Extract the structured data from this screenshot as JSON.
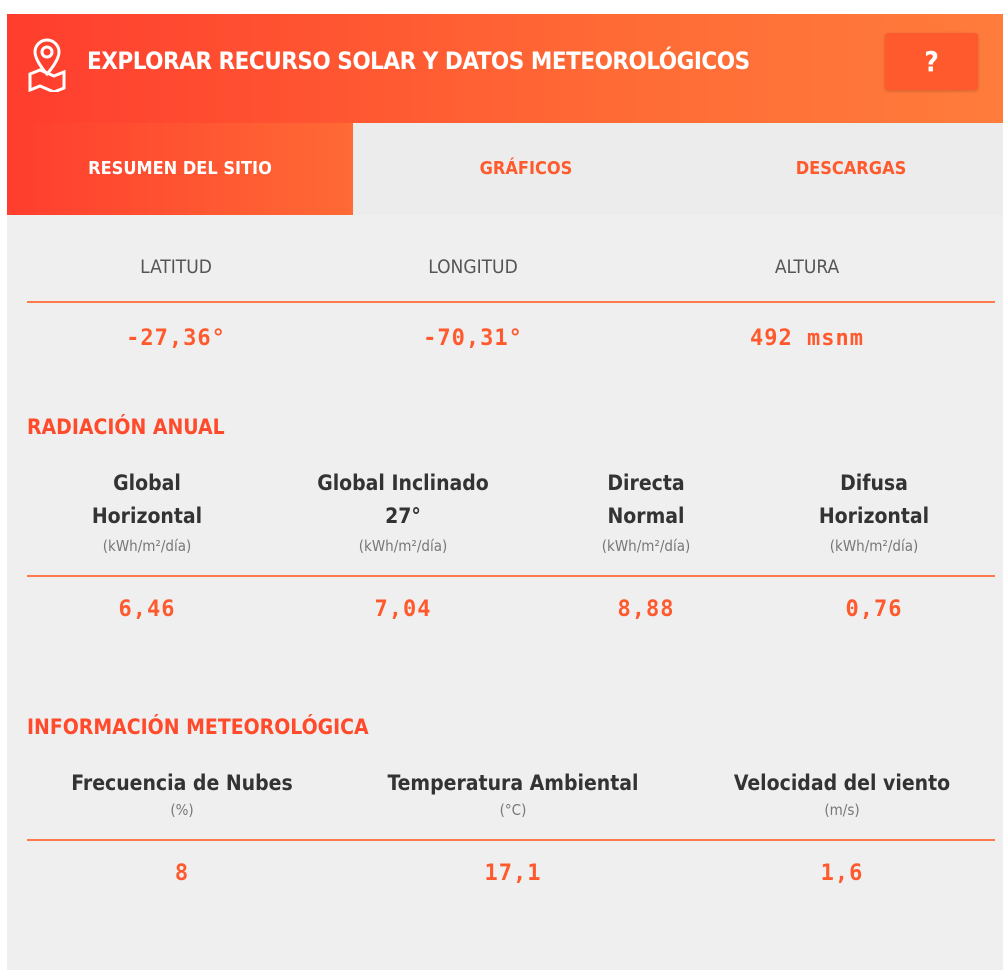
{
  "header": {
    "title": "EXPLORAR RECURSO SOLAR Y DATOS METEOROLÓGICOS",
    "help": "?"
  },
  "tabs": [
    "RESUMEN DEL SITIO",
    "GRÁFICOS",
    "DESCARGAS"
  ],
  "location": {
    "labels": [
      "LATITUD",
      "LONGITUD",
      "ALTURA"
    ],
    "values": [
      "-27,36°",
      "-70,31°",
      "492 msnm"
    ]
  },
  "radiation": {
    "title": "RADIACIÓN ANUAL",
    "columns": [
      {
        "name": [
          "Global",
          "Horizontal"
        ],
        "unit": "(kWh/m²/día)",
        "value": "6,46"
      },
      {
        "name": [
          "Global Inclinado",
          "27°"
        ],
        "unit": "(kWh/m²/día)",
        "value": "7,04"
      },
      {
        "name": [
          "Directa",
          "Normal"
        ],
        "unit": "(kWh/m²/día)",
        "value": "8,88"
      },
      {
        "name": [
          "Difusa",
          "Horizontal"
        ],
        "unit": "(kWh/m²/día)",
        "value": "0,76"
      }
    ]
  },
  "weather": {
    "title": "INFORMACIÓN METEOROLÓGICA",
    "columns": [
      {
        "name": [
          "Frecuencia de Nubes"
        ],
        "unit": "(%)",
        "value": "8"
      },
      {
        "name": [
          "Temperatura Ambiental"
        ],
        "unit": "(°C)",
        "value": "17,1"
      },
      {
        "name": [
          "Velocidad del viento"
        ],
        "unit": "(m/s)",
        "value": "1,6"
      }
    ]
  }
}
